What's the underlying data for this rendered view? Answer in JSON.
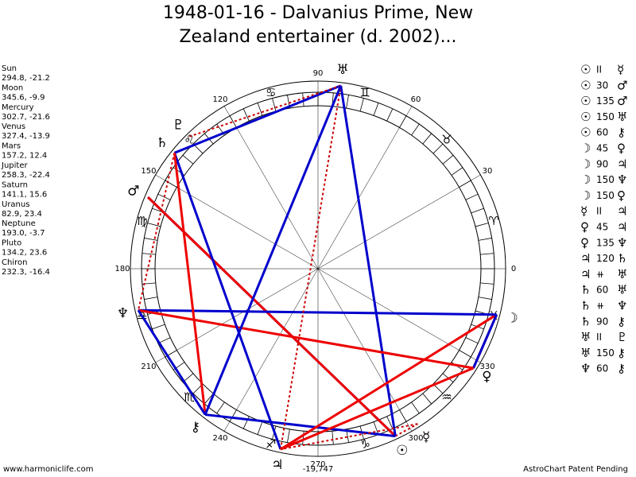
{
  "header": {
    "title_line1": "1948-01-16 - Dalvanius Prime, New",
    "title_line2": "Zealand entertainer (d. 2002)..."
  },
  "planets": [
    {
      "name": "Sun",
      "glyph": "☉",
      "position": "294.8, -21.2"
    },
    {
      "name": "Moon",
      "glyph": "☽",
      "position": "345.6, -9.9"
    },
    {
      "name": "Mercury",
      "glyph": "☿",
      "position": "302.7, -21.6"
    },
    {
      "name": "Venus",
      "glyph": "♀",
      "position": "327.4, -13.9"
    },
    {
      "name": "Mars",
      "glyph": "♂",
      "position": "157.2, 12.4"
    },
    {
      "name": "Jupiter",
      "glyph": "♃",
      "position": "258.3, -22.4"
    },
    {
      "name": "Saturn",
      "glyph": "♄",
      "position": "141.1, 15.6"
    },
    {
      "name": "Uranus",
      "glyph": "♅",
      "position": "82.9, 23.4"
    },
    {
      "name": "Neptune",
      "glyph": "♆",
      "position": "193.0, -3.7"
    },
    {
      "name": "Pluto",
      "glyph": "♇",
      "position": "134.2, 23.6"
    },
    {
      "name": "Chiron",
      "glyph": "⚷",
      "position": "232.3, -16.4"
    }
  ],
  "aspects": [
    {
      "a": "☉",
      "kind": "II",
      "b": "☿"
    },
    {
      "a": "☉",
      "kind": "30",
      "b": "♂"
    },
    {
      "a": "☉",
      "kind": "135",
      "b": "♂"
    },
    {
      "a": "☉",
      "kind": "150",
      "b": "♅"
    },
    {
      "a": "☉",
      "kind": "60",
      "b": "⚷"
    },
    {
      "a": "☽",
      "kind": "45",
      "b": "♀"
    },
    {
      "a": "☽",
      "kind": "90",
      "b": "♃"
    },
    {
      "a": "☽",
      "kind": "150",
      "b": "♆"
    },
    {
      "a": "☽",
      "kind": "150",
      "b": "♀"
    },
    {
      "a": "☿",
      "kind": "II",
      "b": "♃"
    },
    {
      "a": "♀",
      "kind": "45",
      "b": "♃"
    },
    {
      "a": "♀",
      "kind": "135",
      "b": "♆"
    },
    {
      "a": "♃",
      "kind": "120",
      "b": "♄"
    },
    {
      "a": "♃",
      "kind": "⧺",
      "b": "♅"
    },
    {
      "a": "♄",
      "kind": "60",
      "b": "♅"
    },
    {
      "a": "♄",
      "kind": "⧺",
      "b": "♆"
    },
    {
      "a": "♄",
      "kind": "90",
      "b": "⚷"
    },
    {
      "a": "♅",
      "kind": "II",
      "b": "♇"
    },
    {
      "a": "♅",
      "kind": "150",
      "b": "⚷"
    },
    {
      "a": "♆",
      "kind": "60",
      "b": "⚷"
    }
  ],
  "signs": [
    "♈",
    "♉",
    "♊",
    "♋",
    "♌",
    "♍",
    "♎",
    "♏",
    "♐",
    "♑",
    "♒",
    "♓"
  ],
  "degree_labels": [
    0,
    30,
    60,
    90,
    120,
    150,
    180,
    210,
    240,
    270,
    300,
    330
  ],
  "center_value": "-19,747",
  "footer": {
    "left": "www.harmoniclife.com",
    "right": "AstroChart Patent Pending"
  }
}
